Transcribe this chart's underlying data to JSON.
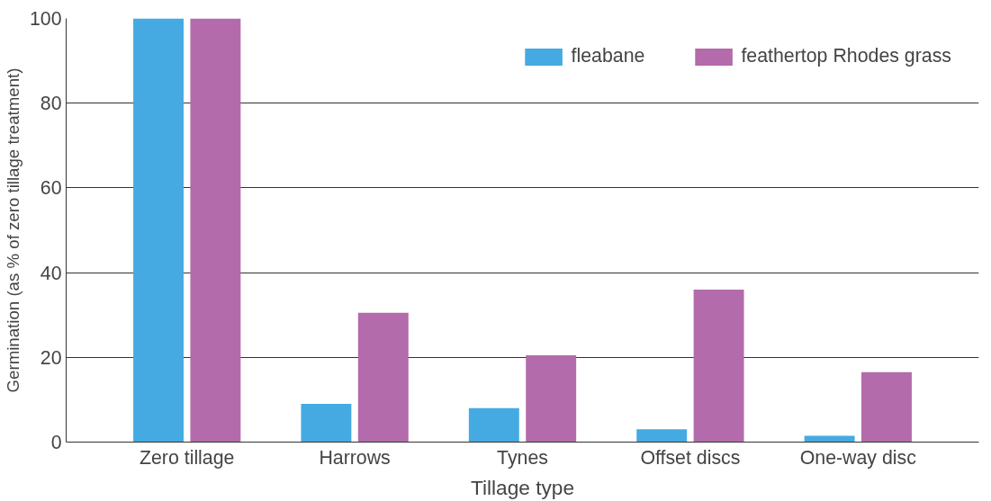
{
  "chart_data": {
    "type": "bar",
    "xlabel": "Tillage type",
    "ylabel": "Germination (as % of zero tillage treatment)",
    "categories": [
      "Zero tillage",
      "Harrows",
      "Tynes",
      "Offset discs",
      "One-way disc"
    ],
    "series": [
      {
        "name": "fleabane",
        "color": "#45aae2",
        "values": [
          100,
          9,
          8,
          3,
          1.5
        ]
      },
      {
        "name": "feathertop Rhodes grass",
        "color": "#b36bab",
        "values": [
          100,
          30.5,
          20.5,
          36,
          16.5
        ]
      }
    ],
    "ylim": [
      0,
      100
    ],
    "yticks": [
      0,
      20,
      40,
      60,
      80,
      100
    ],
    "grid": "y",
    "legend": "top right"
  }
}
